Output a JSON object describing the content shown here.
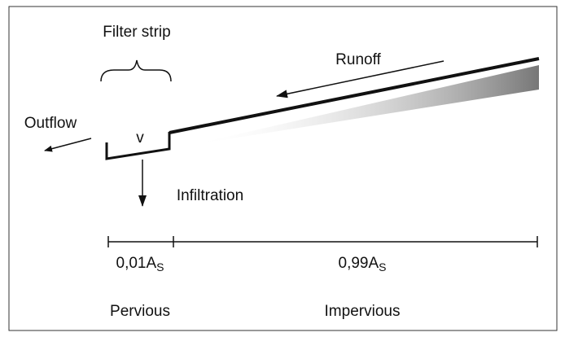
{
  "labels": {
    "filter_strip": "Filter strip",
    "runoff": "Runoff",
    "outflow": "Outflow",
    "v": "v",
    "infiltration": "Infiltration",
    "pervious_area": {
      "main": "0,01A",
      "sub": "S"
    },
    "impervious_area": {
      "main": "0,99A",
      "sub": "S"
    },
    "pervious": "Pervious",
    "impervious": "Impervious"
  }
}
